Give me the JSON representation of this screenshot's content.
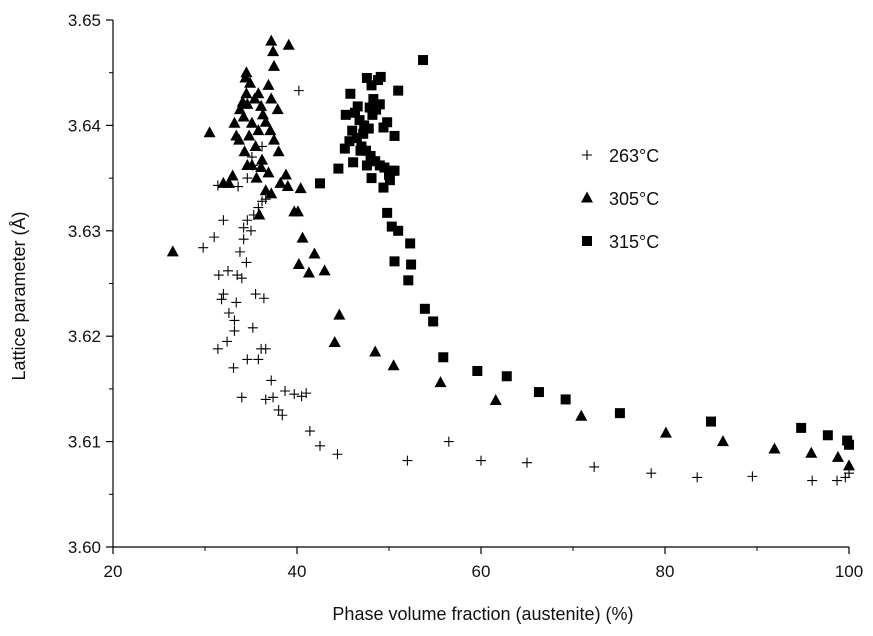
{
  "chart_data": {
    "type": "scatter",
    "xlabel": "Phase volume fraction (austenite) (%)",
    "ylabel": "Lattice parameter (Å)",
    "xlim": [
      20,
      100
    ],
    "ylim": [
      3.6,
      3.65
    ],
    "xticks": [
      "20",
      "40",
      "60",
      "80",
      "100"
    ],
    "yticks": [
      "3.60",
      "3.61",
      "3.62",
      "3.63",
      "3.64",
      "3.65"
    ],
    "legend_position": "right-upper",
    "series": [
      {
        "name": "263°C",
        "marker": "plus",
        "color": "#000000",
        "points": [
          [
            29.8,
            3.6284
          ],
          [
            31,
            3.6294
          ],
          [
            31.4,
            3.6343
          ],
          [
            32,
            3.631
          ],
          [
            31.5,
            3.6258
          ],
          [
            32.5,
            3.6262
          ],
          [
            33.5,
            3.6258
          ],
          [
            32,
            3.624
          ],
          [
            31.8,
            3.6235
          ],
          [
            32.6,
            3.6222
          ],
          [
            33.2,
            3.6215
          ],
          [
            32.4,
            3.6195
          ],
          [
            31.4,
            3.6188
          ],
          [
            33.2,
            3.6205
          ],
          [
            33.4,
            3.6232
          ],
          [
            34,
            3.6255
          ],
          [
            34.5,
            3.627
          ],
          [
            33.8,
            3.628
          ],
          [
            34.2,
            3.6292
          ],
          [
            35,
            3.63
          ],
          [
            34.2,
            3.6303
          ],
          [
            35.3,
            3.6315
          ],
          [
            34.6,
            3.631
          ],
          [
            35.8,
            3.6322
          ],
          [
            36.2,
            3.6328
          ],
          [
            33.6,
            3.6342
          ],
          [
            34.6,
            3.635
          ],
          [
            35.2,
            3.6362
          ],
          [
            35.1,
            3.637
          ],
          [
            36.2,
            3.638
          ],
          [
            36.6,
            3.633
          ],
          [
            35.5,
            3.624
          ],
          [
            36.4,
            3.6236
          ],
          [
            35.2,
            3.6208
          ],
          [
            34.6,
            3.6178
          ],
          [
            33.1,
            3.617
          ],
          [
            35.8,
            3.6178
          ],
          [
            36.6,
            3.6188
          ],
          [
            36.1,
            3.6188
          ],
          [
            37.2,
            3.6158
          ],
          [
            36.6,
            3.614
          ],
          [
            37.4,
            3.6142
          ],
          [
            38,
            3.613
          ],
          [
            38.4,
            3.6125
          ],
          [
            38.7,
            3.6148
          ],
          [
            39.7,
            3.6145
          ],
          [
            40.5,
            3.6143
          ],
          [
            41,
            3.6146
          ],
          [
            34,
            3.6142
          ],
          [
            40.2,
            3.6433
          ],
          [
            41.4,
            3.611
          ],
          [
            42.5,
            3.6096
          ],
          [
            44.4,
            3.6088
          ],
          [
            52,
            3.6082
          ],
          [
            56.5,
            3.61
          ],
          [
            60,
            3.6082
          ],
          [
            65,
            3.608
          ],
          [
            72.3,
            3.6076
          ],
          [
            78.5,
            3.607
          ],
          [
            83.5,
            3.6066
          ],
          [
            89.5,
            3.6067
          ],
          [
            96,
            3.6063
          ],
          [
            98.7,
            3.6063
          ],
          [
            99.6,
            3.6066
          ],
          [
            100,
            3.607
          ]
        ]
      },
      {
        "name": "305°C",
        "marker": "triangle",
        "color": "#000000",
        "points": [
          [
            26.5,
            3.628
          ],
          [
            30.5,
            3.6393
          ],
          [
            32,
            3.6345
          ],
          [
            32.6,
            3.6345
          ],
          [
            33,
            3.6352
          ],
          [
            33.4,
            3.639
          ],
          [
            33.2,
            3.6402
          ],
          [
            33.8,
            3.6415
          ],
          [
            34.1,
            3.6422
          ],
          [
            34.6,
            3.642
          ],
          [
            34.2,
            3.6408
          ],
          [
            33.7,
            3.6386
          ],
          [
            34.3,
            3.6375
          ],
          [
            34.8,
            3.639
          ],
          [
            35.1,
            3.6402
          ],
          [
            35.5,
            3.638
          ],
          [
            35.8,
            3.6395
          ],
          [
            36.3,
            3.641
          ],
          [
            34.5,
            3.643
          ],
          [
            34.4,
            3.6445
          ],
          [
            34.9,
            3.644
          ],
          [
            35.4,
            3.6425
          ],
          [
            35.8,
            3.643
          ],
          [
            36.1,
            3.6418
          ],
          [
            36.6,
            3.6403
          ],
          [
            37.1,
            3.6395
          ],
          [
            37.5,
            3.6386
          ],
          [
            38,
            3.6375
          ],
          [
            34.5,
            3.645
          ],
          [
            35.1,
            3.6362
          ],
          [
            35.6,
            3.635
          ],
          [
            36.1,
            3.636
          ],
          [
            36.9,
            3.6355
          ],
          [
            34.6,
            3.6362
          ],
          [
            35.9,
            3.6315
          ],
          [
            36.6,
            3.6338
          ],
          [
            37.2,
            3.6335
          ],
          [
            38.2,
            3.6345
          ],
          [
            38.8,
            3.6353
          ],
          [
            39,
            3.6342
          ],
          [
            36.2,
            3.6367
          ],
          [
            37.2,
            3.648
          ],
          [
            39.1,
            3.6476
          ],
          [
            37.5,
            3.6456
          ],
          [
            37.9,
            3.6415
          ],
          [
            37.2,
            3.6425
          ],
          [
            36.9,
            3.6438
          ],
          [
            37.4,
            3.647
          ],
          [
            39.7,
            3.6318
          ],
          [
            40.4,
            3.634
          ],
          [
            40.1,
            3.6318
          ],
          [
            40.6,
            3.6293
          ],
          [
            40.2,
            3.6268
          ],
          [
            41.3,
            3.626
          ],
          [
            41.9,
            3.6278
          ],
          [
            43,
            3.6262
          ],
          [
            44.6,
            3.622
          ],
          [
            44.1,
            3.6194
          ],
          [
            48.5,
            3.6185
          ],
          [
            50.5,
            3.6172
          ],
          [
            55.6,
            3.6156
          ],
          [
            61.6,
            3.6139
          ],
          [
            70.9,
            3.6124
          ],
          [
            80.1,
            3.6108
          ],
          [
            86.3,
            3.61
          ],
          [
            91.9,
            3.6093
          ],
          [
            95.9,
            3.6089
          ],
          [
            98.8,
            3.6085
          ],
          [
            100,
            3.6077
          ]
        ]
      },
      {
        "name": "315°C",
        "marker": "square",
        "color": "#000000",
        "points": [
          [
            42.5,
            3.6345
          ],
          [
            44.5,
            3.6359
          ],
          [
            45.2,
            3.6378
          ],
          [
            45.7,
            3.6385
          ],
          [
            45.3,
            3.641
          ],
          [
            46,
            3.6395
          ],
          [
            46.5,
            3.6388
          ],
          [
            47,
            3.638
          ],
          [
            47.5,
            3.6376
          ],
          [
            48,
            3.6371
          ],
          [
            48.5,
            3.6366
          ],
          [
            49,
            3.6362
          ],
          [
            49.5,
            3.636
          ],
          [
            50,
            3.6353
          ],
          [
            50.6,
            3.6357
          ],
          [
            45.8,
            3.643
          ],
          [
            46.3,
            3.6412
          ],
          [
            46.8,
            3.6405
          ],
          [
            47.3,
            3.64
          ],
          [
            47.8,
            3.6397
          ],
          [
            48.2,
            3.641
          ],
          [
            48.6,
            3.6415
          ],
          [
            49,
            3.642
          ],
          [
            49.4,
            3.6398
          ],
          [
            47.6,
            3.6445
          ],
          [
            48.1,
            3.6438
          ],
          [
            48.8,
            3.6443
          ],
          [
            49.1,
            3.6446
          ],
          [
            48.3,
            3.6425
          ],
          [
            47.9,
            3.6417
          ],
          [
            46.6,
            3.6418
          ],
          [
            47.2,
            3.6392
          ],
          [
            46.9,
            3.6376
          ],
          [
            46.1,
            3.6365
          ],
          [
            47.6,
            3.6362
          ],
          [
            48.1,
            3.635
          ],
          [
            49.4,
            3.6341
          ],
          [
            50.1,
            3.6348
          ],
          [
            50.6,
            3.639
          ],
          [
            51,
            3.6433
          ],
          [
            49.8,
            3.6403
          ],
          [
            50.4,
            3.6357
          ],
          [
            53.7,
            3.6462
          ],
          [
            49.8,
            3.6317
          ],
          [
            50.3,
            3.6304
          ],
          [
            51,
            3.63
          ],
          [
            50.6,
            3.6271
          ],
          [
            52.3,
            3.6288
          ],
          [
            52.4,
            3.6268
          ],
          [
            52.1,
            3.6253
          ],
          [
            53.9,
            3.6226
          ],
          [
            54.8,
            3.6214
          ],
          [
            55.9,
            3.618
          ],
          [
            59.6,
            3.6167
          ],
          [
            62.8,
            3.6162
          ],
          [
            66.3,
            3.6147
          ],
          [
            69.2,
            3.614
          ],
          [
            75.1,
            3.6127
          ],
          [
            85,
            3.6119
          ],
          [
            94.8,
            3.6113
          ],
          [
            97.7,
            3.6106
          ],
          [
            99.8,
            3.6101
          ],
          [
            100,
            3.6097
          ]
        ]
      }
    ]
  }
}
